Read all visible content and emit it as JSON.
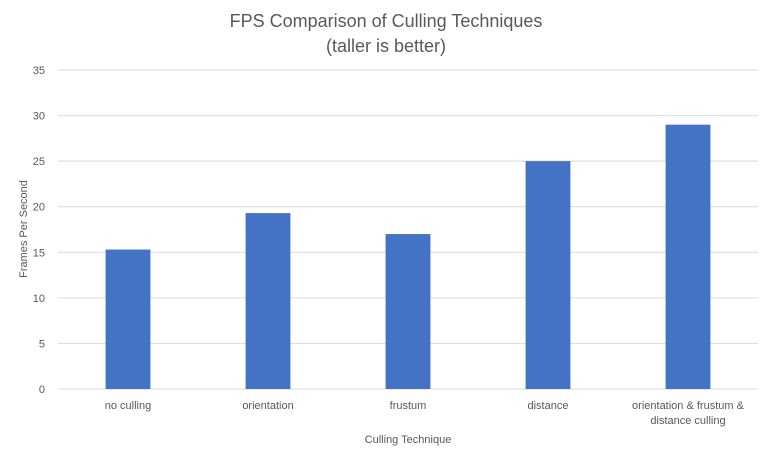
{
  "chart_data": {
    "type": "bar",
    "title": "FPS Comparison of Culling Techniques",
    "subtitle": "(taller is better)",
    "xlabel": "Culling Technique",
    "ylabel": "Frames Per Second",
    "categories": [
      [
        "no culling"
      ],
      [
        "orientation"
      ],
      [
        "frustum"
      ],
      [
        "distance"
      ],
      [
        "orientation & frustum &",
        "distance culling"
      ]
    ],
    "values": [
      15.3,
      19.3,
      17.0,
      25.0,
      29.0
    ],
    "ylim": [
      0,
      35
    ],
    "yticks": [
      0,
      5,
      10,
      15,
      20,
      25,
      30,
      35
    ],
    "grid": true,
    "legend": "none",
    "colors": {
      "bar": "#4472C4",
      "grid": "#D9D9D9",
      "text": "#595959"
    }
  }
}
